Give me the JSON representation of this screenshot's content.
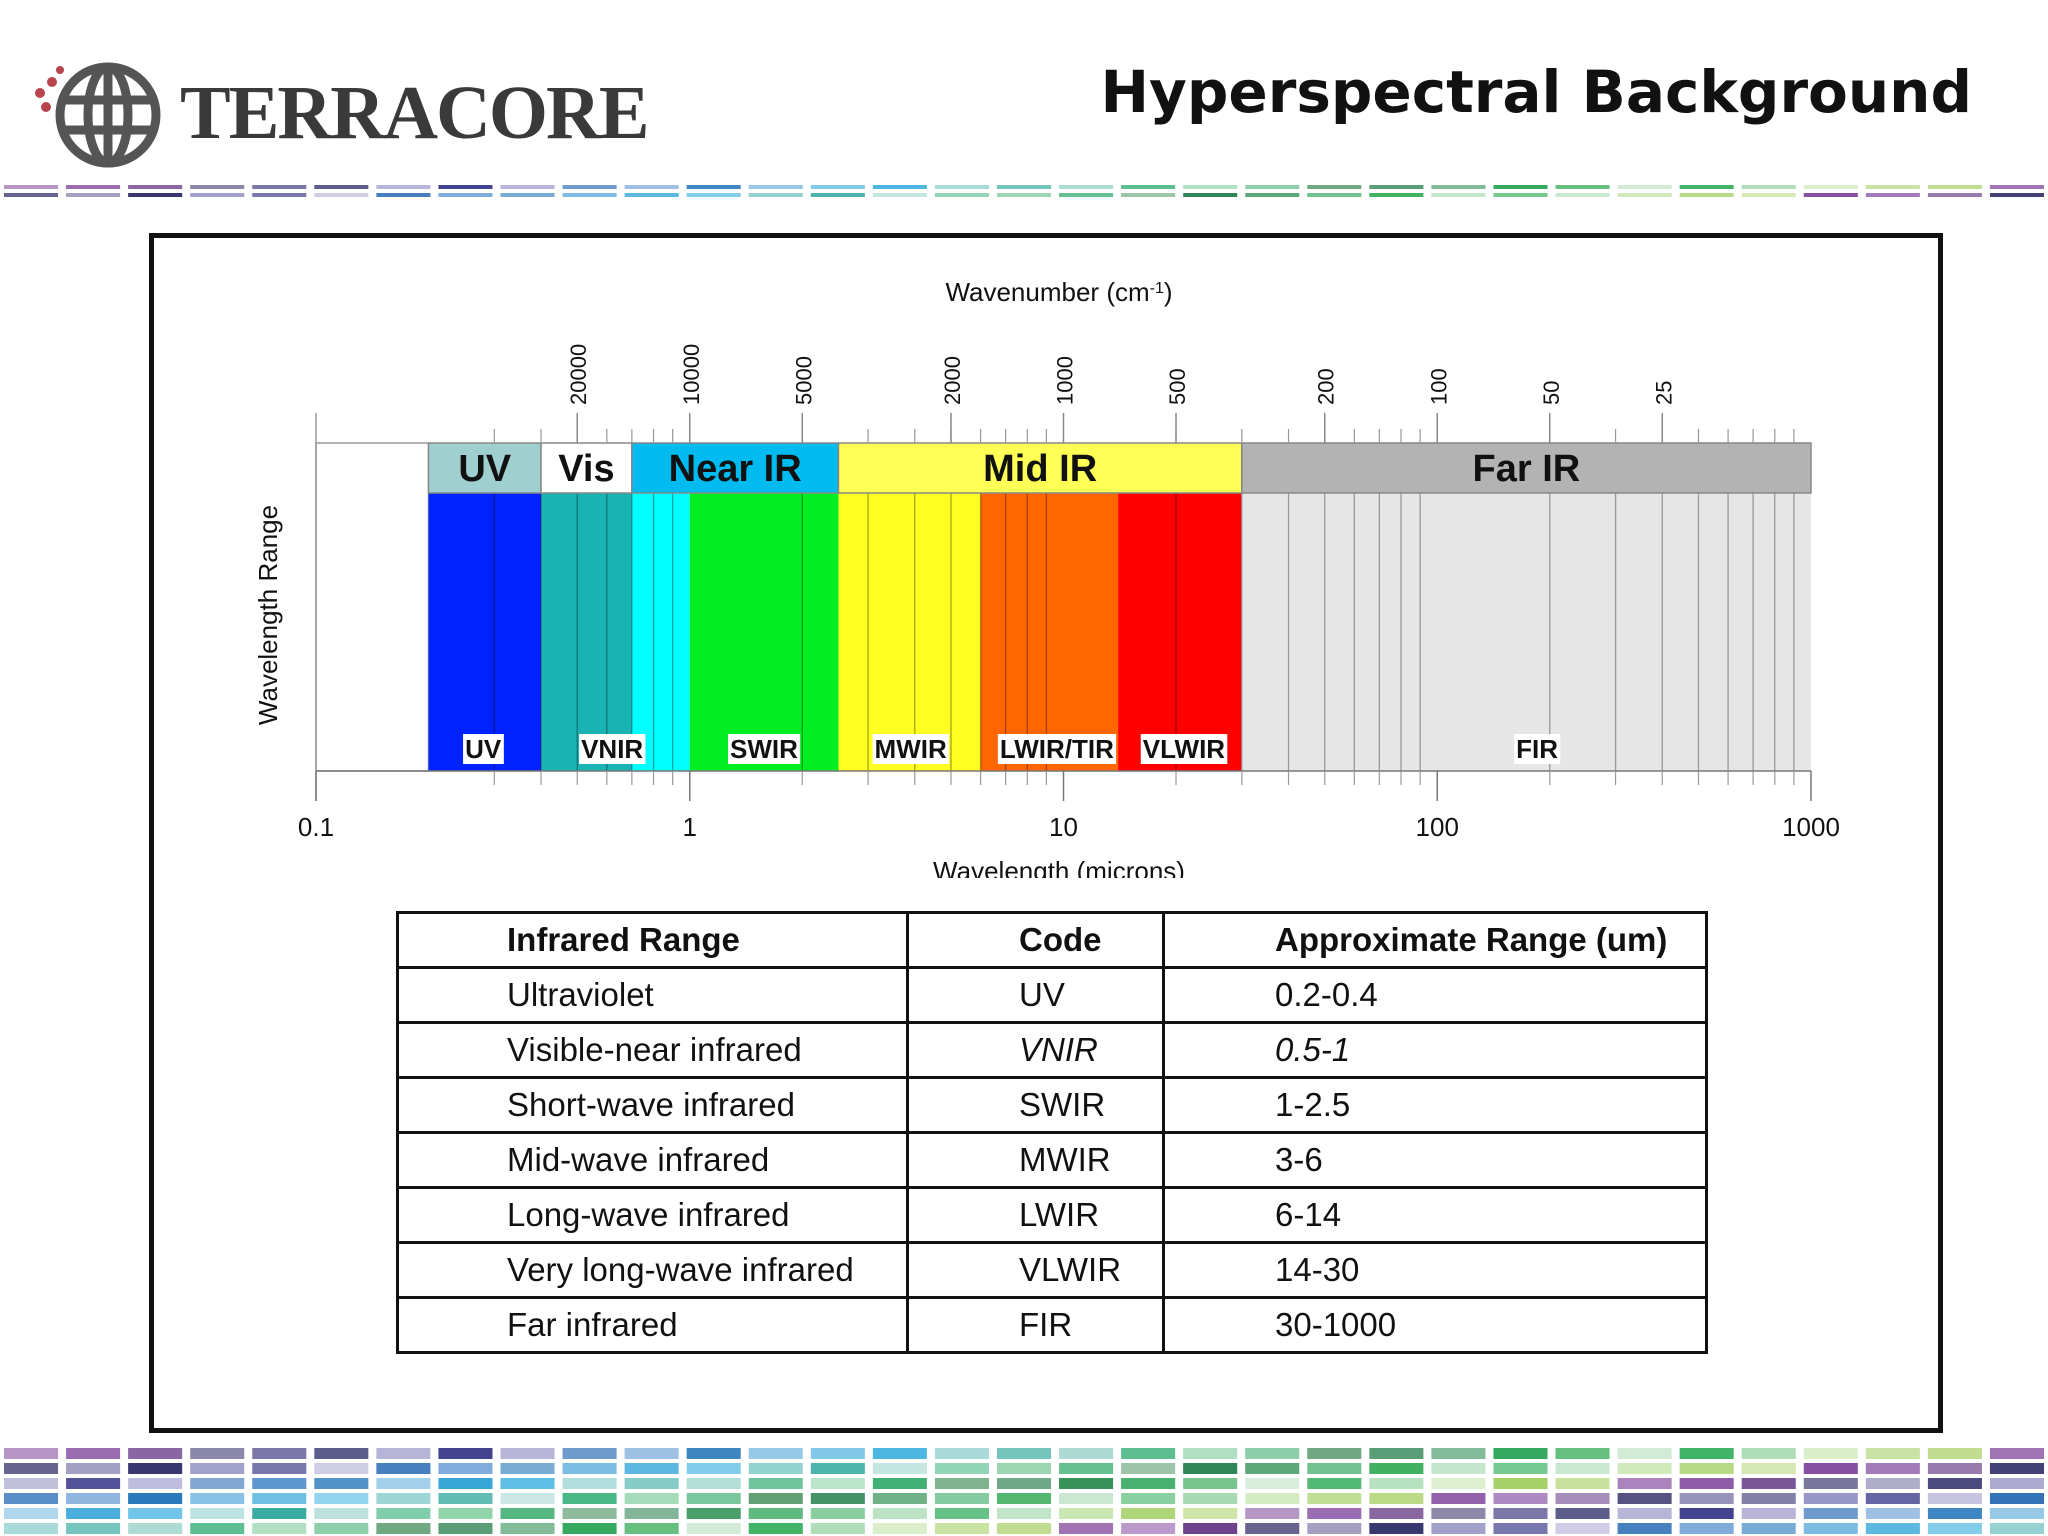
{
  "header": {
    "logo_text": "TERRACORE",
    "title": "Hyperspectral Background"
  },
  "colors": {
    "uv": "#0022ff",
    "vnir": "#1ab3b3",
    "vnir_cyan": "#00ffff",
    "swir": "#00ee22",
    "mwir": "#ffff22",
    "lwir": "#ff6600",
    "vlwir": "#ff0000",
    "fir": "#e6e6e6",
    "band_uv": "#9fcfcf",
    "band_near_ir": "#00bbf0",
    "band_mid_ir": "#ffff55",
    "band_far_ir": "#b3b3b3"
  },
  "chart_data": {
    "type": "diagram",
    "x_scale": "log",
    "xlim": [
      0.1,
      1000
    ],
    "xlabel": "Wavelength (microns)",
    "ylabel": "Wavelength Range",
    "top_axis_label_main": "Wavenumber (cm",
    "top_axis_label_sup": "-1",
    "top_axis_label_end": ")",
    "x_ticks": [
      {
        "value": 0.1,
        "label": "0.1"
      },
      {
        "value": 1,
        "label": "1"
      },
      {
        "value": 10,
        "label": "10"
      },
      {
        "value": 100,
        "label": "100"
      },
      {
        "value": 1000,
        "label": "1000"
      }
    ],
    "wavenumber_ticks": [
      {
        "label": "20000",
        "wavelength": 0.5
      },
      {
        "label": "10000",
        "wavelength": 1
      },
      {
        "label": "5000",
        "wavelength": 2
      },
      {
        "label": "2000",
        "wavelength": 5
      },
      {
        "label": "1000",
        "wavelength": 10
      },
      {
        "label": "500",
        "wavelength": 20
      },
      {
        "label": "200",
        "wavelength": 50
      },
      {
        "label": "100",
        "wavelength": 100
      },
      {
        "label": "50",
        "wavelength": 200
      },
      {
        "label": "25",
        "wavelength": 400
      }
    ],
    "top_bands": [
      {
        "name": "UV",
        "start": 0.2,
        "end": 0.4,
        "color": "#9fcfcf"
      },
      {
        "name": "Vis",
        "start": 0.4,
        "end": 0.7,
        "color": "#ffffff"
      },
      {
        "name": "Near IR",
        "start": 0.7,
        "end": 2.5,
        "color": "#00bbf0"
      },
      {
        "name": "Mid IR",
        "start": 2.5,
        "end": 30,
        "color": "#ffff55"
      },
      {
        "name": "Far IR",
        "start": 30,
        "end": 1000,
        "color": "#b3b3b3"
      }
    ],
    "segments": [
      {
        "start": 0.2,
        "end": 0.4,
        "color": "#0022ff"
      },
      {
        "start": 0.4,
        "end": 0.7,
        "color": "#1ab3b3"
      },
      {
        "start": 0.7,
        "end": 1.0,
        "color": "#00ffff"
      },
      {
        "start": 1.0,
        "end": 2.5,
        "color": "#00ee22"
      },
      {
        "start": 2.5,
        "end": 6,
        "color": "#ffff22"
      },
      {
        "start": 6,
        "end": 14,
        "color": "#ff6600"
      },
      {
        "start": 14,
        "end": 30,
        "color": "#ff0000"
      },
      {
        "start": 30,
        "end": 1000,
        "color": "#e6e6e6"
      }
    ],
    "range_labels": [
      {
        "label": "UV",
        "center": 0.28
      },
      {
        "label": "VNIR",
        "center": 0.62
      },
      {
        "label": "SWIR",
        "center": 1.58
      },
      {
        "label": "MWIR",
        "center": 3.9
      },
      {
        "label": "LWIR/TIR",
        "center": 9.6
      },
      {
        "label": "VLWIR",
        "center": 21
      },
      {
        "label": "FIR",
        "center": 185
      }
    ]
  },
  "table": {
    "headers": [
      "Infrared Range",
      "Code",
      "Approximate Range (um)"
    ],
    "rows": [
      [
        "Ultraviolet",
        "UV",
        "0.2-0.4"
      ],
      [
        "Visible-near infrared",
        "VNIR",
        "0.5-1"
      ],
      [
        "Short-wave infrared",
        "SWIR",
        "1-2.5"
      ],
      [
        "Mid-wave infrared",
        "MWIR",
        "3-6"
      ],
      [
        "Long-wave infrared",
        "LWIR",
        "6-14"
      ],
      [
        "Very long-wave infrared",
        "VLWIR",
        "14-30"
      ],
      [
        "Far infrared",
        "FIR",
        "30-1000"
      ]
    ]
  }
}
